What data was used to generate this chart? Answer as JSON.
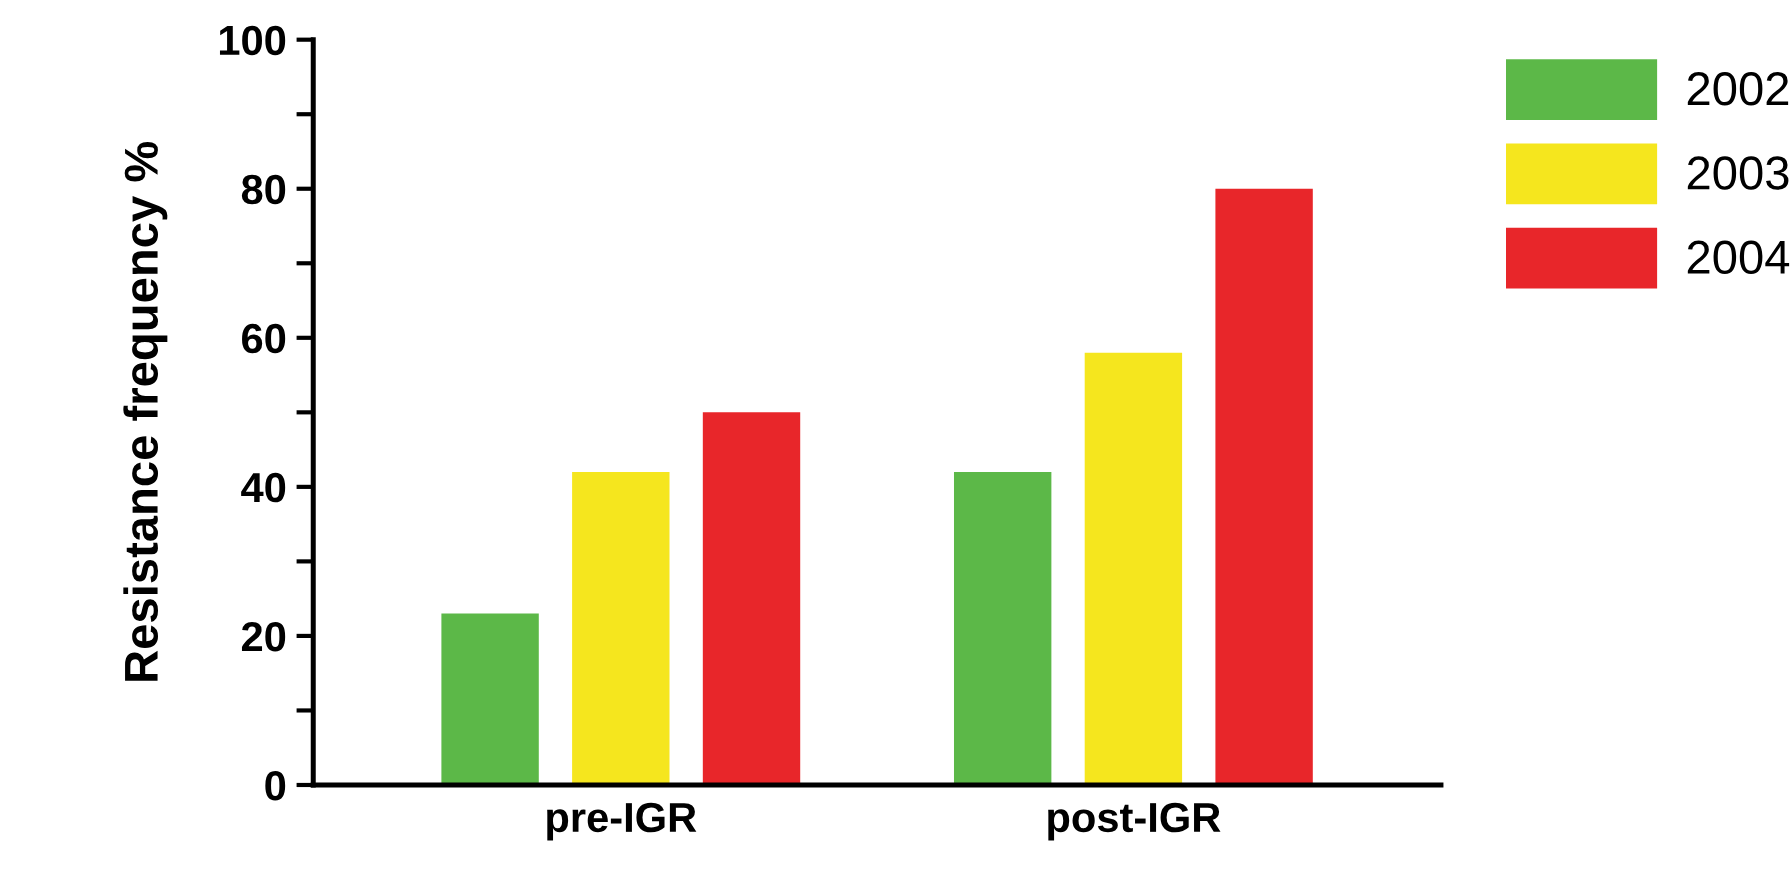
{
  "chart_data": {
    "type": "bar",
    "ylabel": "Resistance frequency %",
    "categories": [
      "pre-IGR",
      "post-IGR"
    ],
    "series": [
      {
        "name": "2002",
        "color": "#5cb848",
        "values": [
          23,
          42
        ]
      },
      {
        "name": "2003",
        "color": "#f5e61e",
        "values": [
          42,
          58
        ]
      },
      {
        "name": "2004",
        "color": "#e8262a",
        "values": [
          50,
          80
        ]
      }
    ],
    "ylim": [
      0,
      100
    ],
    "yticks": [
      0,
      {
        "value": 10,
        "label": null
      },
      20,
      {
        "value": 30,
        "label": null
      },
      40,
      {
        "value": 50,
        "label": null
      },
      60,
      {
        "value": 70,
        "label": null
      },
      80,
      {
        "value": 90,
        "label": null
      },
      100
    ],
    "grid": false,
    "legend": "right"
  }
}
